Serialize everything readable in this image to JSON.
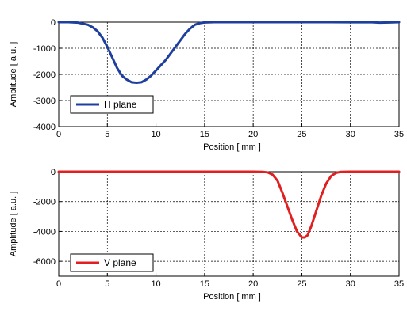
{
  "chart_data": [
    {
      "type": "line",
      "xlabel": "Position [ mm ]",
      "ylabel": "Amplitude [ a.u. ]",
      "xlim": [
        0,
        35
      ],
      "ylim": [
        -4000,
        0
      ],
      "xticks": [
        0,
        5,
        10,
        15,
        20,
        25,
        30,
        35
      ],
      "yticks": [
        0,
        -1000,
        -2000,
        -3000,
        -4000
      ],
      "grid": true,
      "legend_position": "bottom-left",
      "series": [
        {
          "name": "H plane",
          "color": "#1f3f9f",
          "x": [
            0,
            1,
            2,
            3,
            3.5,
            4,
            4.5,
            5,
            5.5,
            6,
            6.5,
            7,
            7.5,
            8,
            8.5,
            9,
            9.5,
            10,
            10.5,
            11,
            11.5,
            12,
            12.5,
            13,
            13.5,
            14,
            14.5,
            15,
            16,
            18,
            20,
            22,
            24,
            25,
            26,
            28,
            30,
            32,
            33,
            34,
            35
          ],
          "y": [
            0,
            0,
            -20,
            -100,
            -200,
            -350,
            -600,
            -950,
            -1350,
            -1750,
            -2050,
            -2200,
            -2300,
            -2320,
            -2300,
            -2200,
            -2050,
            -1850,
            -1650,
            -1450,
            -1200,
            -950,
            -700,
            -450,
            -250,
            -100,
            -40,
            -10,
            0,
            0,
            0,
            0,
            0,
            0,
            0,
            0,
            -5,
            0,
            -20,
            -10,
            0
          ]
        }
      ]
    },
    {
      "type": "line",
      "xlabel": "Position [ mm ]",
      "ylabel": "Amplitude [ a.u. ]",
      "xlim": [
        0,
        35
      ],
      "ylim": [
        -7000,
        0
      ],
      "xticks": [
        0,
        5,
        10,
        15,
        20,
        25,
        30,
        35
      ],
      "yticks": [
        0,
        -2000,
        -4000,
        -6000
      ],
      "grid": true,
      "legend_position": "bottom-left",
      "series": [
        {
          "name": "V plane",
          "color": "#e02020",
          "x": [
            0,
            5,
            10,
            15,
            20,
            21,
            21.5,
            22,
            22.5,
            23,
            23.5,
            24,
            24.5,
            25,
            25.3,
            25.6,
            26,
            26.5,
            27,
            27.5,
            28,
            28.5,
            29,
            30,
            32,
            35
          ],
          "y": [
            0,
            0,
            0,
            0,
            0,
            -10,
            -50,
            -200,
            -600,
            -1400,
            -2300,
            -3200,
            -4000,
            -4400,
            -4400,
            -4250,
            -3600,
            -2600,
            -1600,
            -800,
            -300,
            -80,
            -10,
            0,
            0,
            0
          ]
        }
      ]
    }
  ]
}
